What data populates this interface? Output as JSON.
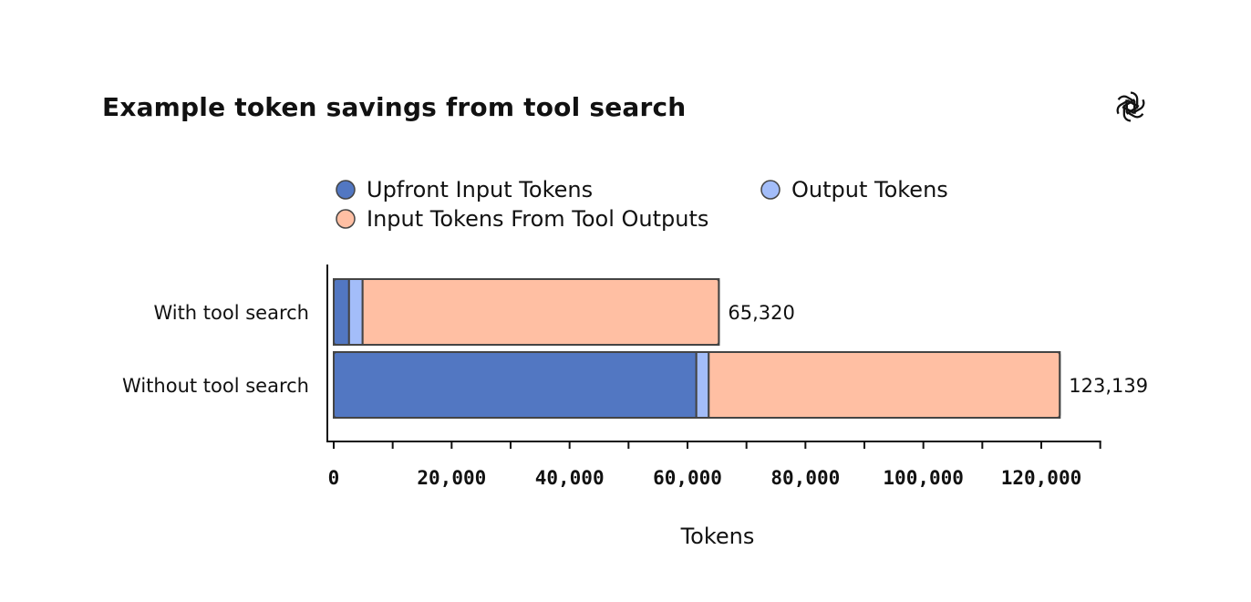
{
  "chart_data": {
    "type": "bar",
    "orientation": "horizontal",
    "stacked": true,
    "title": "Example token savings from tool search",
    "xlabel": "Tokens",
    "ylabel": "",
    "xlim": [
      0,
      130000
    ],
    "xticks": [
      0,
      20000,
      40000,
      60000,
      80000,
      100000,
      120000
    ],
    "xtick_labels": [
      "0",
      "20,000",
      "40,000",
      "60,000",
      "80,000",
      "100,000",
      "120,000"
    ],
    "minor_ticks": [
      10000,
      30000,
      50000,
      70000,
      90000,
      110000,
      130000
    ],
    "grid": false,
    "legend_placement": "top",
    "categories": [
      "With tool search",
      "Without tool search"
    ],
    "series": [
      {
        "name": "Upfront Input Tokens",
        "color": "#5277c2",
        "values": [
          2600,
          61500
        ]
      },
      {
        "name": "Output Tokens",
        "color": "#a3bdf9",
        "values": [
          2300,
          2100
        ]
      },
      {
        "name": "Input Tokens From Tool Outputs",
        "color": "#ffbfa3",
        "values": [
          60420,
          59539
        ]
      }
    ],
    "totals": [
      65320,
      123139
    ],
    "total_labels": [
      "65,320",
      "123,139"
    ]
  },
  "logo": "openai-logo"
}
